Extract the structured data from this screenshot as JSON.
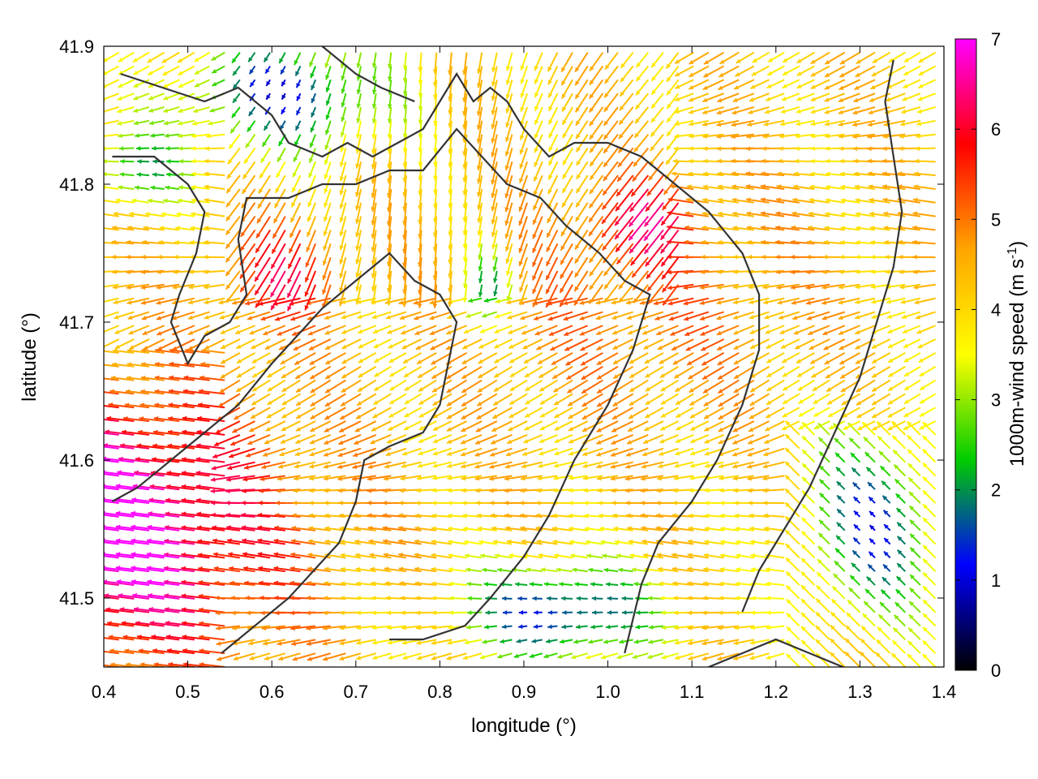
{
  "chart_data": {
    "type": "vector-field",
    "xlabel": "longitude (°)",
    "ylabel": "latitude (°)",
    "xlim": [
      0.4,
      1.4
    ],
    "ylim": [
      41.45,
      41.9
    ],
    "x_ticks": [
      "0.4",
      "0.5",
      "0.6",
      "0.7",
      "0.8",
      "0.9",
      "1.0",
      "1.1",
      "1.2",
      "1.3",
      "1.4"
    ],
    "x_tick_values": [
      0.4,
      0.5,
      0.6,
      0.7,
      0.8,
      0.9,
      1.0,
      1.1,
      1.2,
      1.3,
      1.4
    ],
    "y_ticks": [
      "41.5",
      "41.6",
      "41.7",
      "41.8",
      "41.9"
    ],
    "y_tick_values": [
      41.5,
      41.6,
      41.7,
      41.8,
      41.9
    ],
    "colorbar": {
      "label_main": "1000m-wind speed (m s",
      "label_sup": "-1",
      "label_end": ")",
      "range": [
        0,
        7
      ],
      "ticks": [
        "0",
        "1",
        "2",
        "3",
        "4",
        "5",
        "6",
        "7"
      ],
      "tick_values": [
        0,
        1,
        2,
        3,
        4,
        5,
        6,
        7
      ],
      "colormap": [
        "#000000",
        "#0000ff",
        "#00cc00",
        "#ffff00",
        "#ffa500",
        "#ff0000",
        "#ff00ff"
      ]
    },
    "grid": false,
    "wind_field": {
      "grid_spacing_deg": 0.018,
      "regions": [
        {
          "area": "southwest",
          "speed": 7.0,
          "direction": "from east"
        },
        {
          "area": "north-center",
          "speed": 2.0,
          "direction": "variable"
        },
        {
          "area": "center",
          "speed": 4.5,
          "direction": "from north-east"
        },
        {
          "area": "east",
          "speed": 5.5,
          "direction": "from north-east"
        },
        {
          "area": "south-center",
          "speed": 1.5,
          "direction": "from east"
        },
        {
          "area": "southeast",
          "speed": 2.0,
          "direction": "from south-east"
        }
      ]
    },
    "coastlines": [
      [
        [
          0.42,
          41.88
        ],
        [
          0.47,
          41.87
        ],
        [
          0.52,
          41.86
        ],
        [
          0.56,
          41.87
        ],
        [
          0.6,
          41.85
        ],
        [
          0.62,
          41.83
        ],
        [
          0.66,
          41.82
        ],
        [
          0.69,
          41.83
        ],
        [
          0.72,
          41.82
        ],
        [
          0.75,
          41.83
        ],
        [
          0.78,
          41.84
        ],
        [
          0.8,
          41.86
        ],
        [
          0.82,
          41.88
        ],
        [
          0.84,
          41.86
        ],
        [
          0.86,
          41.87
        ],
        [
          0.88,
          41.86
        ],
        [
          0.9,
          41.84
        ],
        [
          0.93,
          41.82
        ],
        [
          0.96,
          41.83
        ],
        [
          1.0,
          41.83
        ],
        [
          1.04,
          41.82
        ],
        [
          1.08,
          41.8
        ],
        [
          1.12,
          41.78
        ],
        [
          1.16,
          41.75
        ],
        [
          1.18,
          41.72
        ],
        [
          1.18,
          41.68
        ],
        [
          1.16,
          41.64
        ],
        [
          1.13,
          41.6
        ],
        [
          1.1,
          41.57
        ],
        [
          1.06,
          41.54
        ],
        [
          1.04,
          41.51
        ],
        [
          1.02,
          41.46
        ]
      ],
      [
        [
          0.41,
          41.82
        ],
        [
          0.46,
          41.82
        ],
        [
          0.5,
          41.8
        ],
        [
          0.52,
          41.78
        ],
        [
          0.51,
          41.75
        ],
        [
          0.49,
          41.72
        ],
        [
          0.48,
          41.7
        ],
        [
          0.5,
          41.67
        ],
        [
          0.52,
          41.69
        ],
        [
          0.55,
          41.7
        ],
        [
          0.57,
          41.72
        ],
        [
          0.56,
          41.76
        ],
        [
          0.57,
          41.79
        ],
        [
          0.62,
          41.79
        ],
        [
          0.66,
          41.8
        ],
        [
          0.7,
          41.8
        ],
        [
          0.74,
          41.81
        ],
        [
          0.78,
          41.81
        ],
        [
          0.82,
          41.84
        ],
        [
          0.85,
          41.82
        ],
        [
          0.88,
          41.8
        ],
        [
          0.92,
          41.79
        ],
        [
          0.95,
          41.77
        ],
        [
          0.99,
          41.75
        ],
        [
          1.02,
          41.73
        ],
        [
          1.05,
          41.72
        ],
        [
          1.03,
          41.68
        ],
        [
          1.0,
          41.64
        ],
        [
          0.96,
          41.6
        ],
        [
          0.93,
          41.56
        ],
        [
          0.9,
          41.53
        ],
        [
          0.86,
          41.5
        ],
        [
          0.83,
          41.48
        ],
        [
          0.78,
          41.47
        ],
        [
          0.74,
          41.47
        ]
      ],
      [
        [
          0.41,
          41.57
        ],
        [
          0.44,
          41.58
        ],
        [
          0.48,
          41.6
        ],
        [
          0.52,
          41.62
        ],
        [
          0.56,
          41.64
        ],
        [
          0.6,
          41.67
        ],
        [
          0.63,
          41.69
        ],
        [
          0.66,
          41.71
        ],
        [
          0.7,
          41.73
        ],
        [
          0.74,
          41.75
        ],
        [
          0.77,
          41.73
        ],
        [
          0.8,
          41.72
        ],
        [
          0.82,
          41.7
        ],
        [
          0.81,
          41.67
        ],
        [
          0.8,
          41.64
        ],
        [
          0.78,
          41.62
        ],
        [
          0.74,
          41.61
        ],
        [
          0.71,
          41.6
        ],
        [
          0.7,
          41.57
        ],
        [
          0.68,
          41.54
        ],
        [
          0.65,
          41.52
        ],
        [
          0.62,
          41.5
        ],
        [
          0.58,
          41.48
        ],
        [
          0.54,
          41.46
        ]
      ],
      [
        [
          1.12,
          41.45
        ],
        [
          1.16,
          41.46
        ],
        [
          1.2,
          41.47
        ],
        [
          1.24,
          41.46
        ],
        [
          1.28,
          41.45
        ]
      ],
      [
        [
          1.34,
          41.89
        ],
        [
          1.33,
          41.86
        ],
        [
          1.34,
          41.82
        ],
        [
          1.35,
          41.78
        ],
        [
          1.34,
          41.74
        ],
        [
          1.32,
          41.7
        ],
        [
          1.3,
          41.66
        ],
        [
          1.27,
          41.62
        ],
        [
          1.24,
          41.58
        ],
        [
          1.21,
          41.55
        ],
        [
          1.18,
          41.52
        ],
        [
          1.16,
          41.49
        ]
      ],
      [
        [
          0.66,
          41.9
        ],
        [
          0.7,
          41.88
        ],
        [
          0.73,
          41.87
        ],
        [
          0.77,
          41.86
        ]
      ]
    ]
  }
}
